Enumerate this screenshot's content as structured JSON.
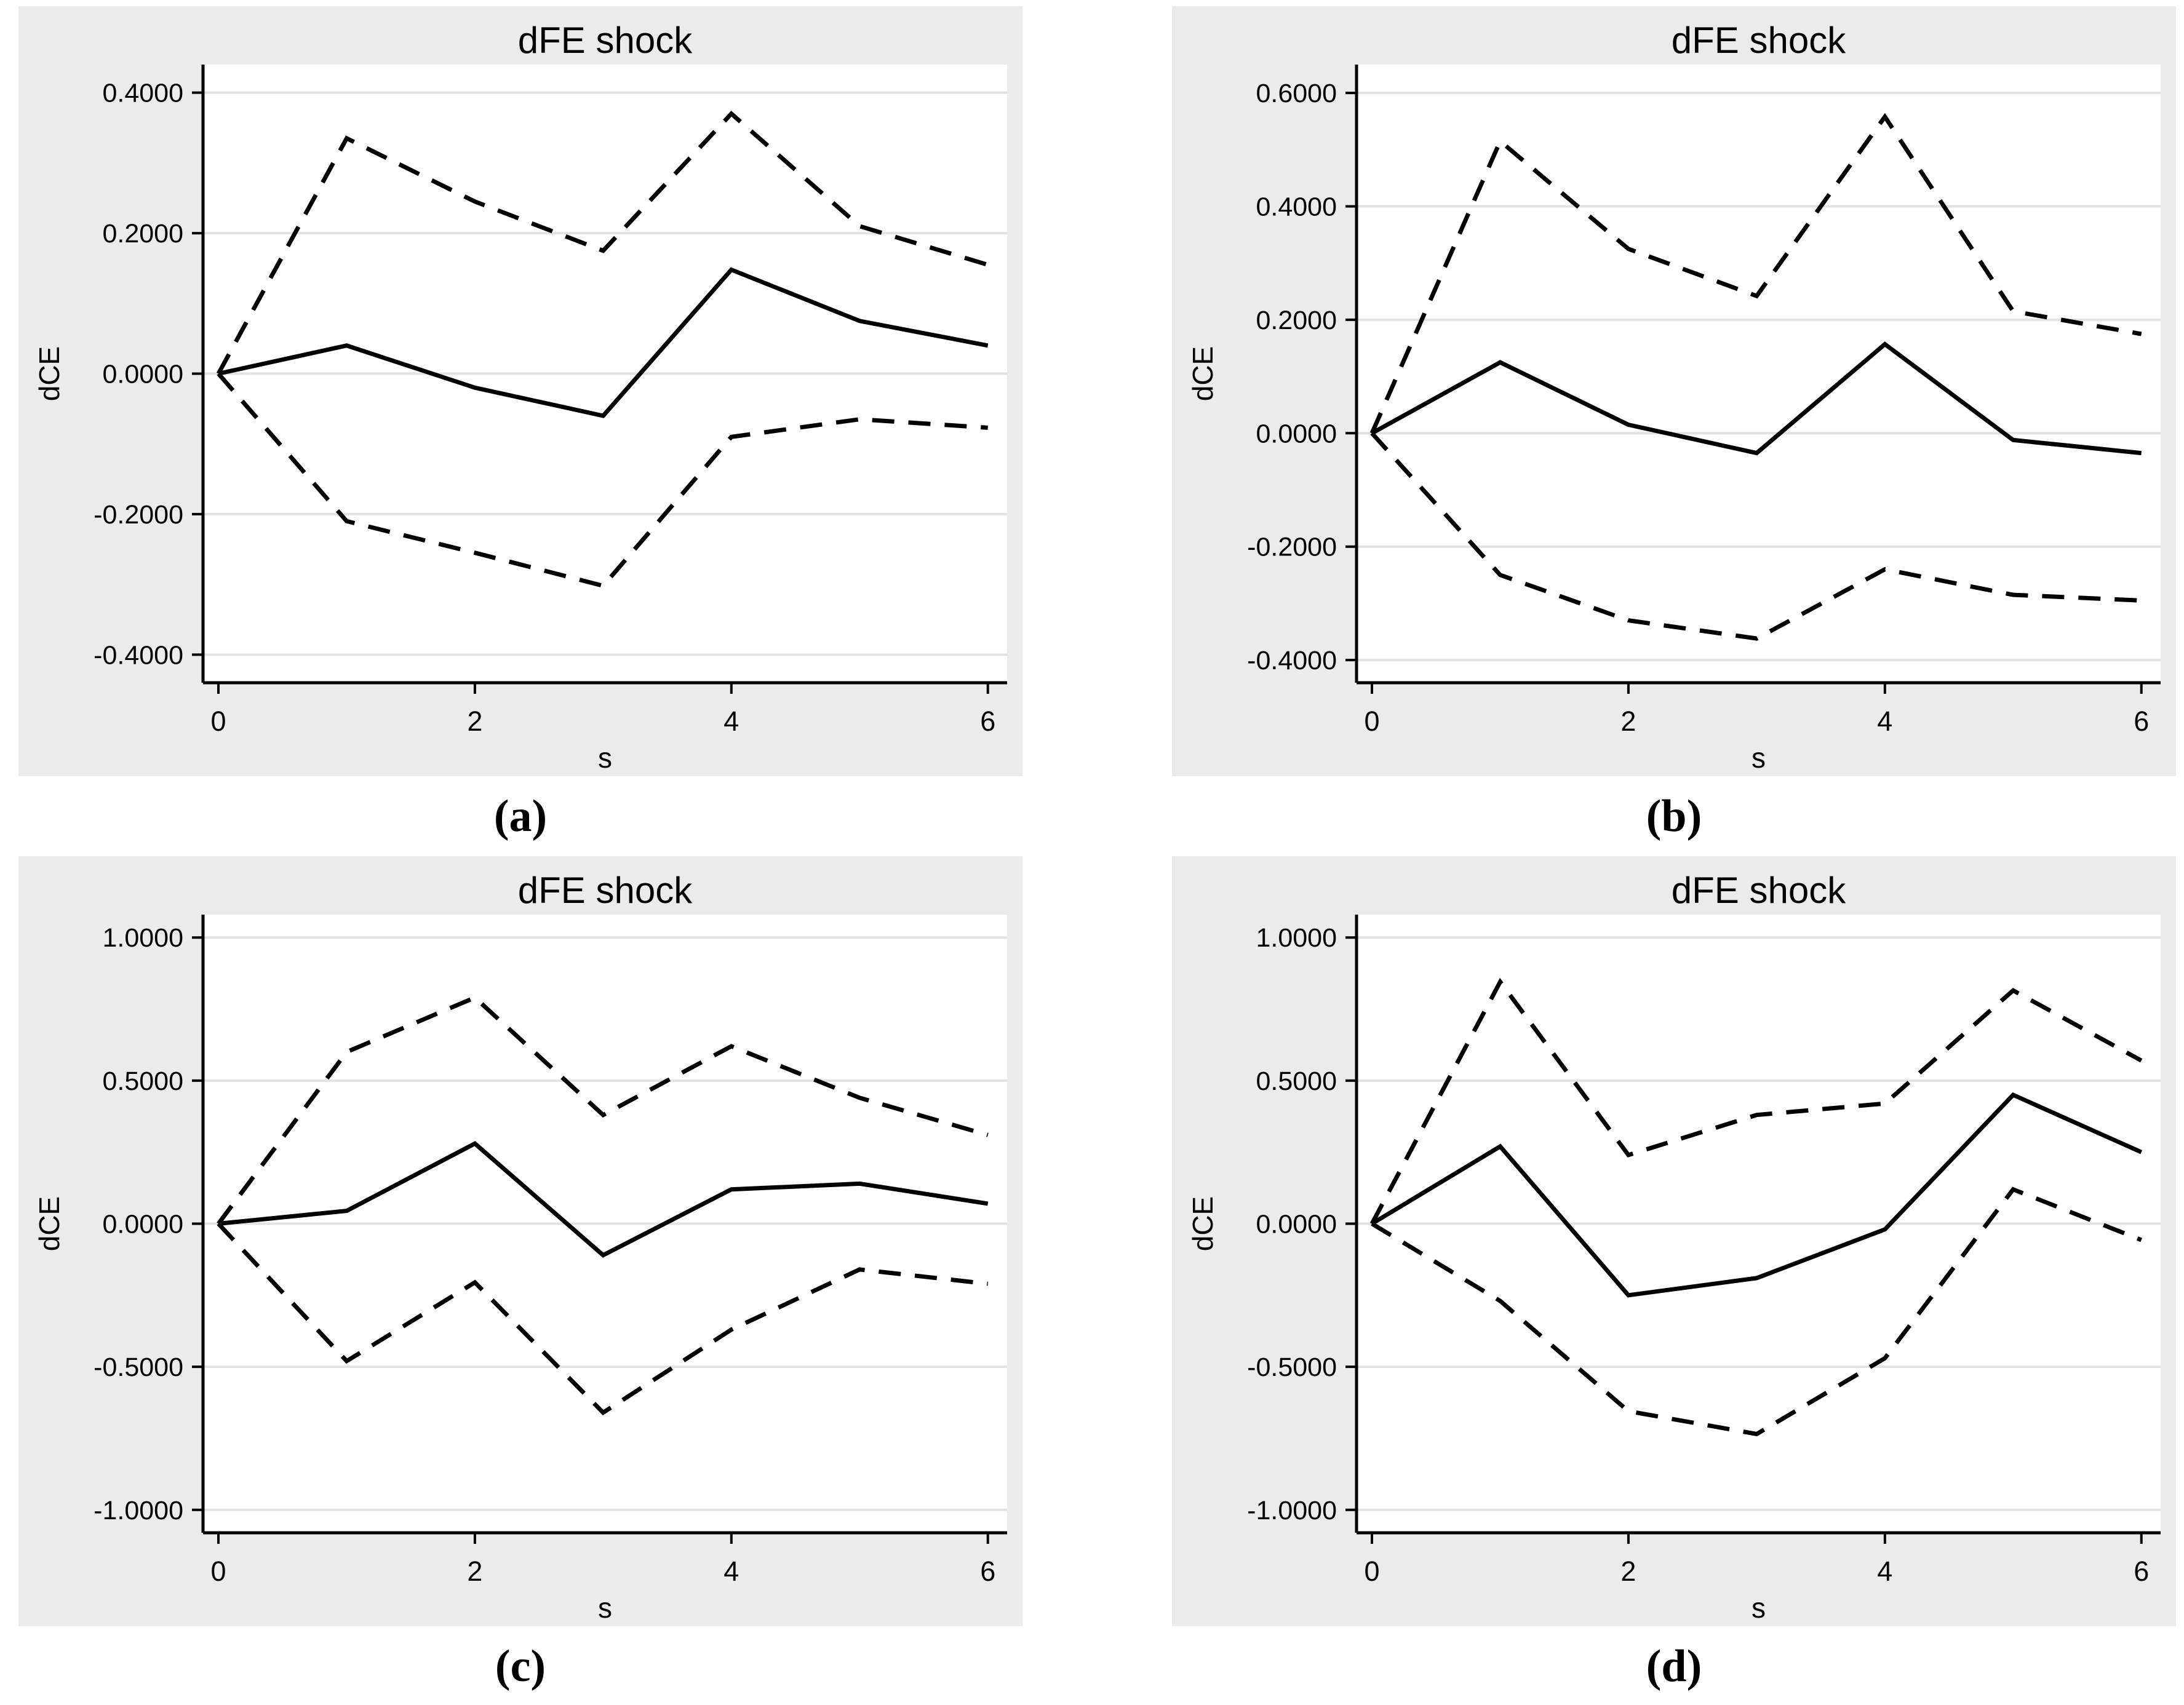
{
  "style": {
    "page_background": "#ffffff",
    "panel_background": "#ebebeb",
    "plot_background": "#ffffff",
    "grid_color": "#e2e2e2",
    "axis_color": "#000000",
    "line_color": "#000000"
  },
  "chart_data": [
    {
      "type": "line",
      "panel": "a",
      "caption": "(a)",
      "title": "dFE shock",
      "xlabel": "s",
      "ylabel": "dCE",
      "grid": "horizontal",
      "legend": "off",
      "x": [
        0,
        1,
        2,
        3,
        4,
        5,
        6
      ],
      "xticks": [
        0,
        2,
        4,
        6
      ],
      "xlim": [
        -0.12,
        6.15
      ],
      "yticks": [
        -0.4,
        -0.2,
        0,
        0.2,
        0.4
      ],
      "ytick_labels": [
        "-0.4000",
        "-0.2000",
        "0.0000",
        "0.2000",
        "0.4000"
      ],
      "ylim": [
        -0.44,
        0.44
      ],
      "series": [
        {
          "name": "irf-estimate",
          "style": "solid",
          "values": [
            0,
            0.04,
            -0.02,
            -0.06,
            0.148,
            0.075,
            0.04
          ]
        },
        {
          "name": "upper-confidence-band",
          "style": "dashed",
          "values": [
            0,
            0.335,
            0.245,
            0.175,
            0.37,
            0.21,
            0.155
          ]
        },
        {
          "name": "lower-confidence-band",
          "style": "dashed",
          "values": [
            0,
            -0.21,
            -0.255,
            -0.302,
            -0.09,
            -0.065,
            -0.077
          ]
        }
      ]
    },
    {
      "type": "line",
      "panel": "b",
      "caption": "(b)",
      "title": "dFE shock",
      "xlabel": "s",
      "ylabel": "dCE",
      "grid": "horizontal",
      "legend": "off",
      "x": [
        0,
        1,
        2,
        3,
        4,
        5,
        6
      ],
      "xticks": [
        0,
        2,
        4,
        6
      ],
      "xlim": [
        -0.12,
        6.15
      ],
      "yticks": [
        -0.4,
        -0.2,
        0,
        0.2,
        0.4,
        0.6
      ],
      "ytick_labels": [
        "-0.4000",
        "-0.2000",
        "0.0000",
        "0.2000",
        "0.4000",
        "0.6000"
      ],
      "ylim": [
        -0.44,
        0.65
      ],
      "series": [
        {
          "name": "irf-estimate",
          "style": "solid",
          "values": [
            0,
            0.125,
            0.015,
            -0.035,
            0.157,
            -0.012,
            -0.035
          ]
        },
        {
          "name": "upper-confidence-band",
          "style": "dashed",
          "values": [
            0,
            0.515,
            0.325,
            0.242,
            0.558,
            0.215,
            0.175
          ]
        },
        {
          "name": "lower-confidence-band",
          "style": "dashed",
          "values": [
            0,
            -0.25,
            -0.33,
            -0.362,
            -0.24,
            -0.285,
            -0.295
          ]
        }
      ]
    },
    {
      "type": "line",
      "panel": "c",
      "caption": "(c)",
      "title": "dFE shock",
      "xlabel": "s",
      "ylabel": "dCE",
      "grid": "horizontal",
      "legend": "off",
      "x": [
        0,
        1,
        2,
        3,
        4,
        5,
        6
      ],
      "xticks": [
        0,
        2,
        4,
        6
      ],
      "xlim": [
        -0.12,
        6.15
      ],
      "yticks": [
        -1,
        -0.5,
        0,
        0.5,
        1
      ],
      "ytick_labels": [
        "-1.0000",
        "-0.5000",
        "0.0000",
        "0.5000",
        "1.0000"
      ],
      "ylim": [
        -1.08,
        1.08
      ],
      "series": [
        {
          "name": "irf-estimate",
          "style": "solid",
          "values": [
            0,
            0.045,
            0.28,
            -0.11,
            0.12,
            0.14,
            0.07
          ]
        },
        {
          "name": "upper-confidence-band",
          "style": "dashed",
          "values": [
            0,
            0.6,
            0.79,
            0.38,
            0.62,
            0.44,
            0.31
          ]
        },
        {
          "name": "lower-confidence-band",
          "style": "dashed",
          "values": [
            0,
            -0.48,
            -0.205,
            -0.66,
            -0.37,
            -0.16,
            -0.21
          ]
        }
      ]
    },
    {
      "type": "line",
      "panel": "d",
      "caption": "(d)",
      "title": "dFE shock",
      "xlabel": "s",
      "ylabel": "dCE",
      "grid": "horizontal",
      "legend": "off",
      "x": [
        0,
        1,
        2,
        3,
        4,
        5,
        6
      ],
      "xticks": [
        0,
        2,
        4,
        6
      ],
      "xlim": [
        -0.12,
        6.15
      ],
      "yticks": [
        -1,
        -0.5,
        0,
        0.5,
        1
      ],
      "ytick_labels": [
        "-1.0000",
        "-0.5000",
        "0.0000",
        "0.5000",
        "1.0000"
      ],
      "ylim": [
        -1.08,
        1.08
      ],
      "series": [
        {
          "name": "irf-estimate",
          "style": "solid",
          "values": [
            0,
            0.27,
            -0.25,
            -0.19,
            -0.02,
            0.45,
            0.25
          ]
        },
        {
          "name": "upper-confidence-band",
          "style": "dashed",
          "values": [
            0,
            0.845,
            0.24,
            0.38,
            0.42,
            0.815,
            0.57
          ]
        },
        {
          "name": "lower-confidence-band",
          "style": "dashed",
          "values": [
            0,
            -0.27,
            -0.655,
            -0.735,
            -0.47,
            0.12,
            -0.057
          ]
        }
      ]
    }
  ]
}
